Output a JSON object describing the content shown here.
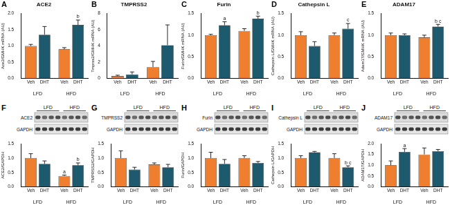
{
  "chart_data": [
    {
      "type": "bar",
      "panel": "A",
      "title": "ACE2",
      "y_label": "Ace2/GMHK mRNA (AU)",
      "categories": [
        "LFD",
        "HFD"
      ],
      "series": [
        {
          "name": "Veh",
          "color": "#f07e2f",
          "values": [
            1.0,
            0.9
          ],
          "errors": [
            0.05,
            0.05
          ]
        },
        {
          "name": "DHT",
          "color": "#1d5a6e",
          "values": [
            1.35,
            1.65
          ],
          "errors": [
            0.25,
            0.15
          ]
        }
      ],
      "ylim": [
        0,
        2
      ],
      "yticks": [
        {
          "value": 0,
          "label": "0.0"
        },
        {
          "value": 0.5,
          "label": "0.5"
        },
        {
          "value": 1,
          "label": "1.0"
        },
        {
          "value": 1.5,
          "label": "1.5"
        },
        {
          "value": 2,
          "label": "2.0"
        }
      ],
      "grid": false,
      "annotations": [
        {
          "series": "DHT",
          "category": "HFD",
          "text": "b"
        }
      ]
    },
    {
      "type": "bar",
      "panel": "B",
      "title": "TMPRSS2",
      "y_label": "Tmprss2/GMHK mRNA (AU)",
      "categories": [
        "LFD",
        "HFD"
      ],
      "series": [
        {
          "name": "Veh",
          "color": "#f07e2f",
          "values": [
            0.3,
            1.4
          ],
          "errors": [
            0.1,
            0.7
          ]
        },
        {
          "name": "DHT",
          "color": "#1d5a6e",
          "values": [
            0.5,
            4.1
          ],
          "errors": [
            0.3,
            2.5
          ]
        }
      ],
      "ylim": [
        0,
        8
      ],
      "yticks": [
        0,
        2,
        4,
        6,
        8
      ],
      "grid": false,
      "annotations": []
    },
    {
      "type": "bar",
      "panel": "C",
      "title": "Furin",
      "y_label": "Furin/GMHK mRNA (AU)",
      "categories": [
        "LFD",
        "HFD"
      ],
      "series": [
        {
          "name": "Veh",
          "color": "#f07e2f",
          "values": [
            1.0,
            1.1
          ],
          "errors": [
            0.02,
            0.05
          ]
        },
        {
          "name": "DHT",
          "color": "#1d5a6e",
          "values": [
            1.23,
            1.38
          ],
          "errors": [
            0.08,
            0.06
          ]
        }
      ],
      "ylim": [
        0,
        1.5
      ],
      "yticks": [
        {
          "value": 0,
          "label": "0.0"
        },
        {
          "value": 0.5,
          "label": "0.5"
        },
        {
          "value": 1,
          "label": "1.0"
        },
        {
          "value": 1.5,
          "label": "1.5"
        }
      ],
      "grid": false,
      "annotations": [
        {
          "series": "DHT",
          "category": "LFD",
          "text": "a"
        },
        {
          "series": "DHT",
          "category": "HFD",
          "text": "b"
        }
      ]
    },
    {
      "type": "bar",
      "panel": "D",
      "title": "Cathepsin L",
      "y_label": "Cathepsin L/GMHK mRNA (AU)",
      "categories": [
        "LFD",
        "HFD"
      ],
      "series": [
        {
          "name": "Veh",
          "color": "#f07e2f",
          "values": [
            1.0,
            1.0
          ],
          "errors": [
            0.08,
            0.05
          ]
        },
        {
          "name": "DHT",
          "color": "#1d5a6e",
          "values": [
            0.75,
            1.15
          ],
          "errors": [
            0.1,
            0.12
          ]
        }
      ],
      "ylim": [
        0,
        1.5
      ],
      "yticks": [
        {
          "value": 0,
          "label": "0.0"
        },
        {
          "value": 0.5,
          "label": "0.5"
        },
        {
          "value": 1,
          "label": "1.0"
        },
        {
          "value": 1.5,
          "label": "1.5"
        }
      ],
      "grid": false,
      "annotations": [
        {
          "series": "DHT",
          "category": "HFD",
          "text": "c"
        }
      ]
    },
    {
      "type": "bar",
      "panel": "E",
      "title": "ADAM17",
      "y_label": "Adam17/GMHK mRNA (AU)",
      "categories": [
        "LFD",
        "HFD"
      ],
      "series": [
        {
          "name": "Veh",
          "color": "#f07e2f",
          "values": [
            1.0,
            0.95
          ],
          "errors": [
            0.05,
            0.05
          ]
        },
        {
          "name": "DHT",
          "color": "#1d5a6e",
          "values": [
            1.0,
            1.2
          ],
          "errors": [
            0.03,
            0.05
          ]
        }
      ],
      "ylim": [
        0,
        1.5
      ],
      "yticks": [
        {
          "value": 0,
          "label": "0.0"
        },
        {
          "value": 0.5,
          "label": "0.5"
        },
        {
          "value": 1,
          "label": "1.0"
        },
        {
          "value": 1.5,
          "label": "1.5"
        }
      ],
      "grid": false,
      "annotations": [
        {
          "series": "DHT",
          "category": "HFD",
          "text": "b c"
        }
      ]
    },
    {
      "type": "bar",
      "panel": "F",
      "blot": {
        "groups": [
          "LFD",
          "HFD"
        ],
        "rows": [
          "ACE2",
          "GAPDH"
        ]
      },
      "y_label": "ACE2/GAPDH",
      "categories": [
        "LFD",
        "HFD"
      ],
      "series": [
        {
          "name": "Veh",
          "color": "#f07e2f",
          "values": [
            1.0,
            0.38
          ],
          "errors": [
            0.15,
            0.03
          ]
        },
        {
          "name": "DHT",
          "color": "#1d5a6e",
          "values": [
            0.8,
            0.75
          ],
          "errors": [
            0.1,
            0.08
          ]
        }
      ],
      "ylim": [
        0,
        1.5
      ],
      "yticks": [
        {
          "value": 0,
          "label": "0.0"
        },
        {
          "value": 0.5,
          "label": "0.5"
        },
        {
          "value": 1,
          "label": "1.0"
        },
        {
          "value": 1.5,
          "label": "1.5"
        }
      ],
      "grid": false,
      "annotations": [
        {
          "series": "Veh",
          "category": "HFD",
          "text": "a"
        },
        {
          "series": "DHT",
          "category": "HFD",
          "text": "b"
        }
      ]
    },
    {
      "type": "bar",
      "panel": "G",
      "blot": {
        "groups": [
          "LFD",
          "HFD"
        ],
        "rows": [
          "TMPRSS2",
          "GAPDH"
        ]
      },
      "y_label": "TMPRSS2/GAPDH",
      "categories": [
        "LFD",
        "HFD"
      ],
      "series": [
        {
          "name": "Veh",
          "color": "#f07e2f",
          "values": [
            1.0,
            0.78
          ],
          "errors": [
            0.25,
            0.05
          ]
        },
        {
          "name": "DHT",
          "color": "#1d5a6e",
          "values": [
            0.6,
            0.68
          ],
          "errors": [
            0.08,
            0.1
          ]
        }
      ],
      "ylim": [
        0,
        1.5
      ],
      "yticks": [
        {
          "value": 0,
          "label": "0.0"
        },
        {
          "value": 0.5,
          "label": "0.5"
        },
        {
          "value": 1,
          "label": "1.0"
        },
        {
          "value": 1.5,
          "label": "1.5"
        }
      ],
      "grid": false,
      "annotations": []
    },
    {
      "type": "bar",
      "panel": "H",
      "blot": {
        "groups": [
          "LFD",
          "HFD"
        ],
        "rows": [
          "Furin",
          "GAPDH"
        ]
      },
      "y_label": "Furin/GAPDH",
      "categories": [
        "LFD",
        "HFD"
      ],
      "series": [
        {
          "name": "Veh",
          "color": "#f07e2f",
          "values": [
            1.0,
            1.0
          ],
          "errors": [
            0.2,
            0.08
          ]
        },
        {
          "name": "DHT",
          "color": "#1d5a6e",
          "values": [
            0.8,
            0.83
          ],
          "errors": [
            0.15,
            0.05
          ]
        }
      ],
      "ylim": [
        0,
        1.5
      ],
      "yticks": [
        {
          "value": 0,
          "label": "0.0"
        },
        {
          "value": 0.5,
          "label": "0.5"
        },
        {
          "value": 1,
          "label": "1.0"
        },
        {
          "value": 1.5,
          "label": "1.5"
        }
      ],
      "grid": false,
      "annotations": []
    },
    {
      "type": "bar",
      "panel": "I",
      "blot": {
        "groups": [
          "LFD",
          "HFD"
        ],
        "rows": [
          "Cathepsin L",
          "GAPDH"
        ]
      },
      "y_label": "Cathepsin L/GAPDH",
      "categories": [
        "LFD",
        "HFD"
      ],
      "series": [
        {
          "name": "Veh",
          "color": "#f07e2f",
          "values": [
            1.0,
            1.0
          ],
          "errors": [
            0.08,
            0.15
          ]
        },
        {
          "name": "DHT",
          "color": "#1d5a6e",
          "values": [
            1.2,
            0.68
          ],
          "errors": [
            0.03,
            0.05
          ]
        }
      ],
      "ylim": [
        0,
        1.5
      ],
      "yticks": [
        {
          "value": 0,
          "label": "0.0"
        },
        {
          "value": 0.5,
          "label": "0.5"
        },
        {
          "value": 1,
          "label": "1.0"
        },
        {
          "value": 1.5,
          "label": "1.5"
        }
      ],
      "grid": false,
      "annotations": [
        {
          "series": "DHT",
          "category": "HFD",
          "text": "b c"
        }
      ]
    },
    {
      "type": "bar",
      "panel": "J",
      "blot": {
        "groups": [
          "LFD",
          "HFD"
        ],
        "rows": [
          "ADAM17",
          "GAPDH"
        ]
      },
      "y_label": "ADAM17/GAPDH",
      "categories": [
        "LFD",
        "HFD"
      ],
      "series": [
        {
          "name": "Veh",
          "color": "#f07e2f",
          "values": [
            1.0,
            1.5
          ],
          "errors": [
            0.2,
            0.3
          ]
        },
        {
          "name": "DHT",
          "color": "#1d5a6e",
          "values": [
            1.62,
            1.65
          ],
          "errors": [
            0.15,
            0.08
          ]
        }
      ],
      "ylim": [
        0,
        2
      ],
      "yticks": [
        {
          "value": 0,
          "label": "0.0"
        },
        {
          "value": 0.5,
          "label": "0.5"
        },
        {
          "value": 1,
          "label": "1.0"
        },
        {
          "value": 1.5,
          "label": "1.5"
        },
        {
          "value": 2,
          "label": "2.0"
        }
      ],
      "grid": false,
      "annotations": [
        {
          "series": "DHT",
          "category": "LFD",
          "text": "a"
        }
      ]
    }
  ]
}
